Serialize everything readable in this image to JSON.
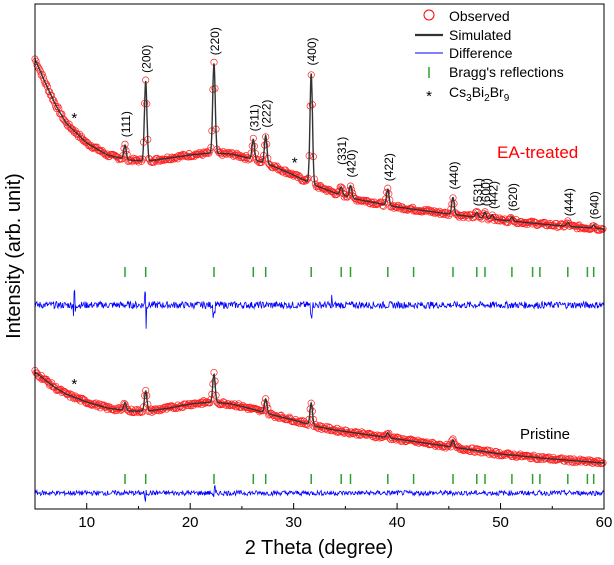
{
  "chart_data": {
    "type": "line",
    "xlabel": "2 Theta (degree)",
    "ylabel": "Intensity (arb. unit)",
    "xlim": [
      5,
      60
    ],
    "x_ticks": [
      10,
      20,
      30,
      40,
      50,
      60
    ],
    "y_ticks_shown": false,
    "legend": {
      "placement": "top-right",
      "entries": [
        {
          "label": "Observed",
          "marker": "open-circle",
          "color": "#ff0000"
        },
        {
          "label": "Simulated",
          "marker": "line",
          "color": "#333333"
        },
        {
          "label": "Difference",
          "marker": "line",
          "color": "#0000ff"
        },
        {
          "label": "Bragg's reflections",
          "marker": "vertical-tick",
          "color": "#2ca02c"
        },
        {
          "label_main": "Cs",
          "sub1": "3",
          "label_mid": "Bi",
          "sub2": "2",
          "label_tail": "Br",
          "sub3": "9",
          "marker": "asterisk",
          "color": "#000000"
        }
      ]
    },
    "samples": [
      {
        "name": "EA-treated",
        "label_color": "#ff0000",
        "background": [
          [
            5,
            186
          ],
          [
            6,
            162
          ],
          [
            7,
            140
          ],
          [
            8,
            122
          ],
          [
            10,
            102
          ],
          [
            12,
            90
          ],
          [
            14,
            85
          ],
          [
            16,
            84
          ],
          [
            18,
            87
          ],
          [
            20,
            90
          ],
          [
            22,
            92
          ],
          [
            24,
            91
          ],
          [
            26,
            86
          ],
          [
            28,
            79
          ],
          [
            30,
            70
          ],
          [
            32,
            60
          ],
          [
            34,
            52
          ],
          [
            36,
            46
          ],
          [
            40,
            38
          ],
          [
            45,
            31
          ],
          [
            50,
            25
          ],
          [
            55,
            20
          ],
          [
            60,
            16
          ]
        ],
        "peaks": [
          {
            "pos": 13.7,
            "height": 14,
            "label": "(111)"
          },
          {
            "pos": 15.7,
            "height": 80,
            "label": "(200)"
          },
          {
            "pos": 22.3,
            "height": 90,
            "label": "(220)"
          },
          {
            "pos": 26.1,
            "height": 20,
            "label": "(311)"
          },
          {
            "pos": 27.3,
            "height": 28,
            "label": "(222)"
          },
          {
            "pos": 31.7,
            "height": 110,
            "label": "(400)"
          },
          {
            "pos": 34.6,
            "height": 8,
            "label": "(331)"
          },
          {
            "pos": 35.5,
            "height": 12,
            "label": "(420)"
          },
          {
            "pos": 39.1,
            "height": 16,
            "label": "(422)"
          },
          {
            "pos": 45.4,
            "height": 17,
            "label": "(440)"
          },
          {
            "pos": 47.7,
            "height": 5,
            "label": "(531)"
          },
          {
            "pos": 48.5,
            "height": 6,
            "label": "(600)"
          },
          {
            "pos": 49.2,
            "height": 4,
            "label": "(442)"
          },
          {
            "pos": 51.1,
            "height": 4,
            "label": "(620)"
          },
          {
            "pos": 56.5,
            "height": 4,
            "label": "(444)"
          },
          {
            "pos": 59.0,
            "height": 3,
            "label": "(640)"
          }
        ],
        "impurity_peaks": [
          8.8,
          30.1
        ],
        "bragg_positions": [
          13.7,
          15.7,
          22.3,
          26.1,
          27.3,
          31.7,
          34.6,
          35.5,
          39.1,
          41.6,
          45.4,
          47.7,
          48.5,
          51.1,
          53.1,
          53.8,
          56.5,
          58.4,
          59.0
        ],
        "difference_noise": 3.5,
        "difference_spikes": [
          [
            8.8,
            14
          ],
          [
            15.7,
            -22
          ],
          [
            22.3,
            16
          ],
          [
            31.7,
            18
          ],
          [
            33.6,
            8
          ]
        ]
      },
      {
        "name": "Pristine",
        "label_color": "#000000",
        "background": [
          [
            5,
            100
          ],
          [
            6,
            92
          ],
          [
            7,
            84
          ],
          [
            8,
            78
          ],
          [
            10,
            70
          ],
          [
            12,
            64
          ],
          [
            14,
            61
          ],
          [
            16,
            61
          ],
          [
            18,
            64
          ],
          [
            20,
            68
          ],
          [
            22,
            70
          ],
          [
            24,
            68
          ],
          [
            26,
            63
          ],
          [
            28,
            57
          ],
          [
            30,
            52
          ],
          [
            32,
            46
          ],
          [
            34,
            42
          ],
          [
            38,
            36
          ],
          [
            42,
            30
          ],
          [
            46,
            24
          ],
          [
            50,
            18
          ],
          [
            55,
            13
          ],
          [
            60,
            9
          ]
        ],
        "peaks": [
          {
            "pos": 13.7,
            "height": 8
          },
          {
            "pos": 15.7,
            "height": 20
          },
          {
            "pos": 22.3,
            "height": 28
          },
          {
            "pos": 27.3,
            "height": 14
          },
          {
            "pos": 31.7,
            "height": 22
          },
          {
            "pos": 39.1,
            "height": 5
          },
          {
            "pos": 45.4,
            "height": 7
          }
        ],
        "impurity_peaks": [
          8.8
        ],
        "bragg_positions": [
          13.7,
          15.7,
          22.3,
          26.1,
          27.3,
          31.7,
          34.6,
          35.5,
          39.1,
          41.6,
          45.4,
          47.7,
          48.5,
          51.1,
          53.1,
          53.8,
          56.5,
          58.4,
          59.0
        ],
        "difference_noise": 2.5,
        "difference_spikes": [
          [
            15.7,
            -7
          ],
          [
            22.3,
            6
          ]
        ]
      }
    ]
  }
}
